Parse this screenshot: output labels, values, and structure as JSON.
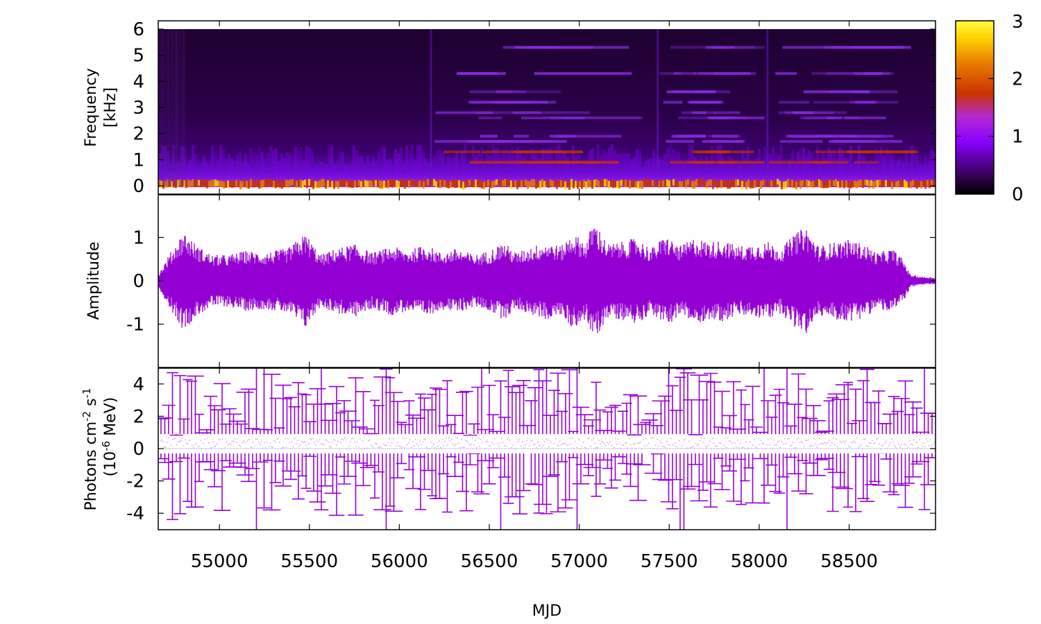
{
  "chart_data": [
    {
      "type": "heatmap",
      "panel": "spectrogram",
      "ylabel_line1": "Frequency",
      "ylabel_line2": "[kHz]",
      "xlim": [
        54660,
        58980
      ],
      "ylim": [
        0,
        6
      ],
      "ytick_labels": [
        "0",
        "1",
        "2",
        "3",
        "4",
        "5",
        "6"
      ],
      "colorbar": {
        "range": [
          0,
          3
        ],
        "tick_labels": [
          "0",
          "1",
          "2",
          "3"
        ],
        "palette": [
          "#000000",
          "#3a0060",
          "#8a00ff",
          "#c63ab8",
          "#c83200",
          "#e97a00",
          "#ffd700",
          "#ffff40"
        ]
      },
      "bright_bands_start_mjd": [
        56170,
        57430,
        58040
      ],
      "band_frequencies_khz": [
        0.9,
        1.3,
        1.7,
        1.9,
        2.6,
        2.8,
        3.2,
        3.6,
        4.3,
        5.3
      ]
    },
    {
      "type": "line",
      "panel": "waveform",
      "ylabel": "Amplitude",
      "xlim": [
        54660,
        58980
      ],
      "ylim": [
        -1.6,
        1.6
      ],
      "ytick_labels": [
        "-1",
        "0",
        "1"
      ],
      "series": [
        {
          "color": "#9400d3",
          "envelope_mjd": [
            54660,
            54720,
            54800,
            54880,
            54960,
            55050,
            55150,
            55250,
            55380,
            55480,
            55560,
            55650,
            55750,
            55850,
            55960,
            56050,
            56150,
            56230,
            56320,
            56420,
            56500,
            56580,
            56650,
            56740,
            56820,
            56900,
            56960,
            57040,
            57080,
            57160,
            57240,
            57320,
            57400,
            57480,
            57560,
            57640,
            57720,
            57800,
            57880,
            57960,
            58050,
            58120,
            58200,
            58260,
            58330,
            58420,
            58500,
            58580,
            58660,
            58740,
            58800,
            58840,
            58900,
            58980
          ],
          "envelope_amplitude": [
            0.15,
            0.6,
            1.15,
            0.8,
            0.6,
            0.6,
            0.7,
            0.65,
            0.75,
            1.1,
            0.6,
            0.75,
            0.85,
            0.65,
            0.8,
            0.7,
            0.85,
            0.65,
            0.75,
            0.6,
            0.7,
            0.9,
            0.65,
            0.8,
            0.9,
            0.8,
            1.1,
            0.9,
            1.4,
            0.85,
            0.9,
            1.0,
            0.75,
            1.05,
            0.8,
            1.0,
            0.9,
            0.95,
            0.8,
            0.85,
            0.9,
            0.75,
            1.1,
            1.25,
            0.8,
            0.9,
            0.95,
            0.85,
            0.65,
            0.75,
            0.5,
            0.15,
            0.1,
            0.08
          ]
        }
      ]
    },
    {
      "type": "scatter",
      "panel": "photon-flux",
      "ylabel_line1": "Photons cm",
      "ylabel_sup1": "-2",
      "ylabel_mid": " s",
      "ylabel_sup2": "-1",
      "ylabel_line2_pre": "(10",
      "ylabel_line2_sup": "-6",
      "ylabel_line2_post": " MeV)",
      "xlim": [
        54660,
        58980
      ],
      "ylim": [
        -5,
        5
      ],
      "ytick_labels": [
        "-4",
        "-2",
        "0",
        "2",
        "4"
      ],
      "xlabel": "MJD",
      "xtick_values": [
        55000,
        55500,
        56000,
        56500,
        57000,
        57500,
        58000,
        58500
      ],
      "xtick_labels": [
        "55000",
        "55500",
        "56000",
        "56500",
        "57000",
        "57500",
        "58000",
        "58500"
      ],
      "error_bar_color": "#9400d3",
      "points_flux_range": [
        0.0,
        0.8
      ],
      "error_half_width_range": [
        0.8,
        5.0
      ]
    }
  ]
}
